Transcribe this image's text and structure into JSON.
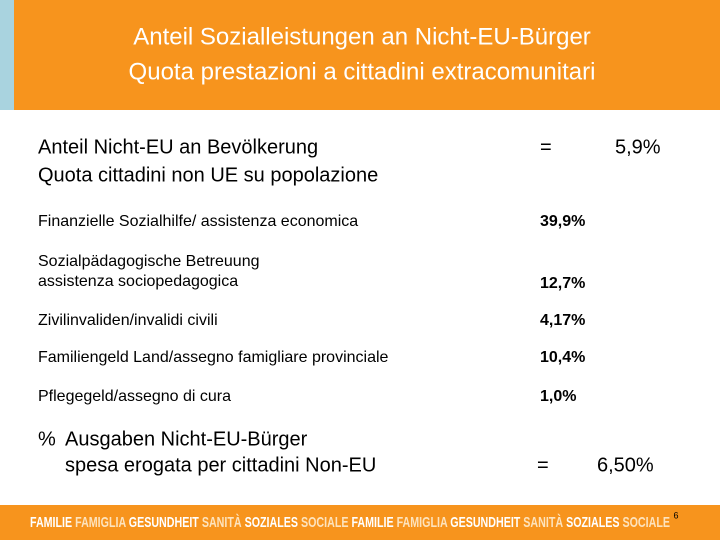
{
  "header": {
    "title": [
      "Anteil Sozialleistungen an Nicht-EU-Bürger",
      "Quota prestazioni a cittadini extracomunitari"
    ]
  },
  "summary": {
    "label": [
      "Anteil Nicht-EU an Bevölkerung",
      "Quota cittadini non UE su popolazione"
    ],
    "sign": "=",
    "value": "5,9%"
  },
  "rows": [
    {
      "label": [
        "Finanzielle Sozialhilfe/ assistenza economica"
      ],
      "value": "39,9%"
    },
    {
      "label": [
        "Sozialpädagogische Betreuung",
        "assistenza sociopedagogica"
      ],
      "value": "12,7%"
    },
    {
      "label": [
        "Zivilinvaliden/invalidi civili"
      ],
      "value": "4,17%"
    },
    {
      "label": [
        "Familiengeld Land/assegno famigliare provinciale"
      ],
      "value": "10,4%"
    },
    {
      "label": [
        "Pflegegeld/assegno di cura"
      ],
      "value": "1,0%"
    }
  ],
  "total": {
    "bullet": "%",
    "label": [
      "Ausgaben Nicht-EU-Bürger",
      "spesa erogata per cittadini Non-EU"
    ],
    "sign": "=",
    "value": "6,50%"
  },
  "footer": {
    "words": [
      "FAMILIE",
      "FAMIGLIA",
      "GESUNDHEIT",
      "SANITÀ",
      "SOZIALES",
      "SOCIALE",
      "FAMILIE",
      "FAMIGLIA",
      "GESUNDHEIT",
      "SANITÀ",
      "SOZIALES",
      "SOCIALE"
    ],
    "page": "6"
  }
}
